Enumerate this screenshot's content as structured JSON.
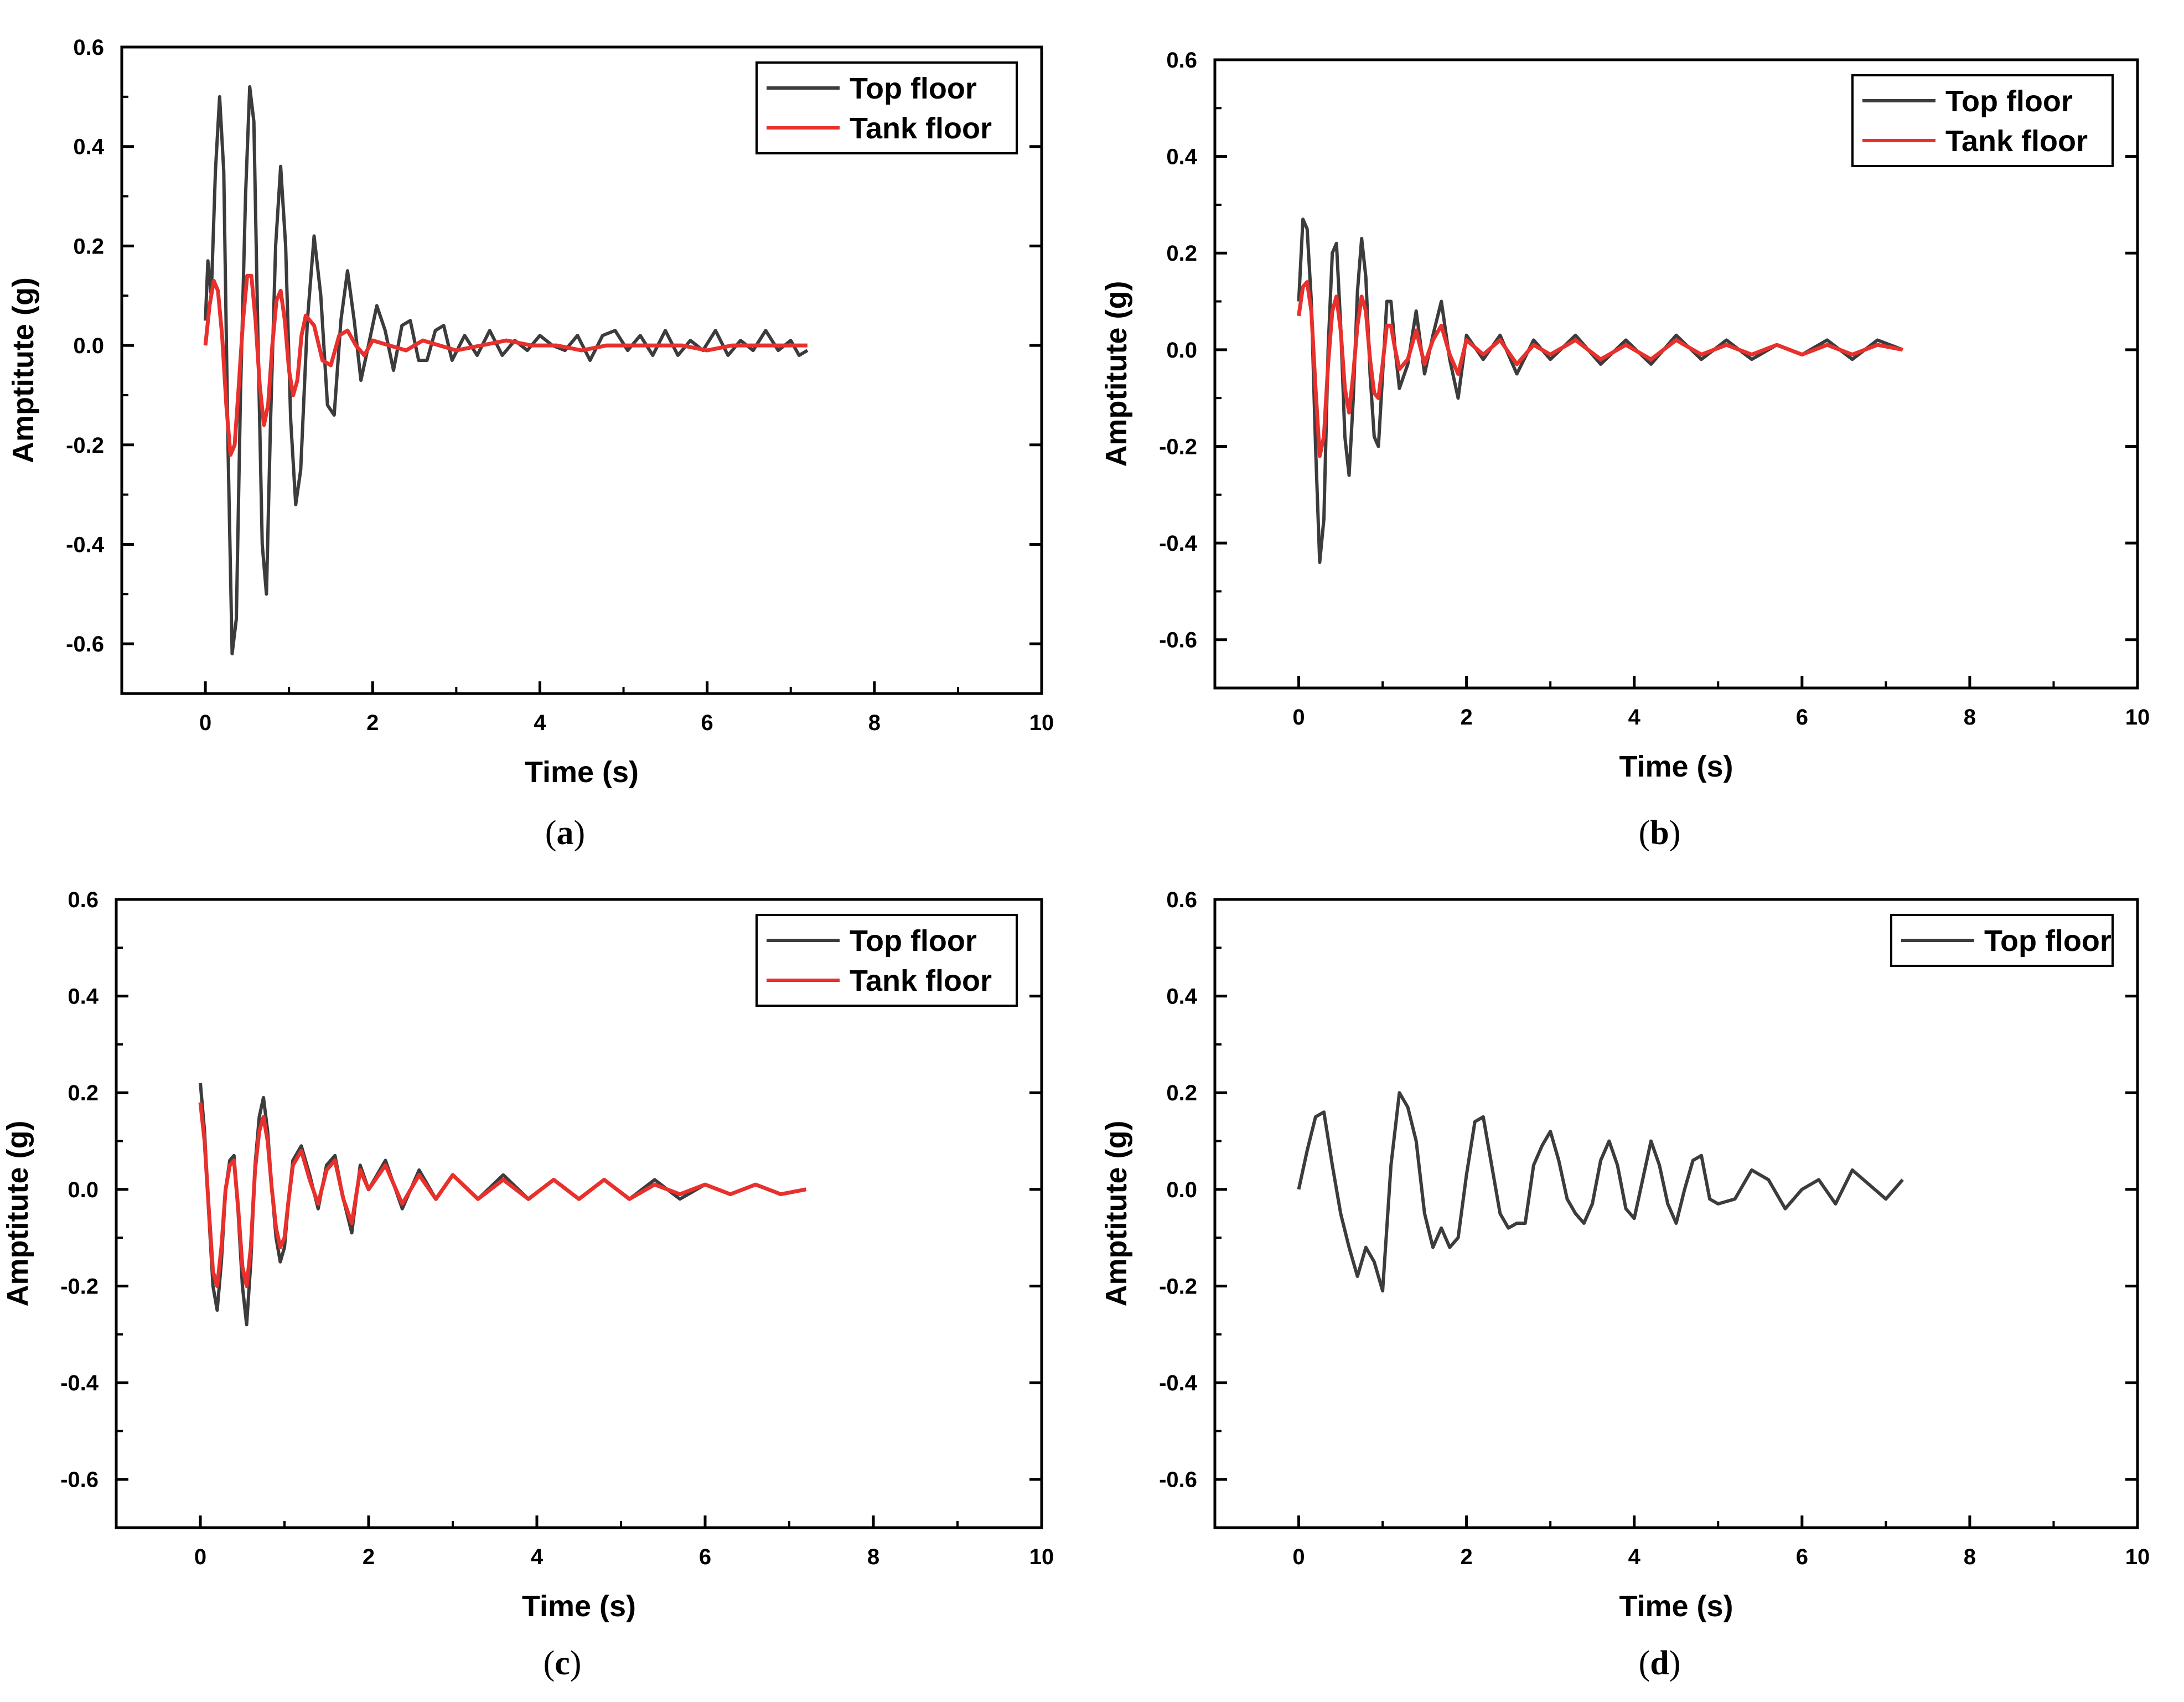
{
  "figure_title": "",
  "chart_data": [
    {
      "panel": "a",
      "panel_label": "a",
      "type": "line",
      "xlabel": "Time (s)",
      "ylabel": "Amptitute (g)",
      "xlim": [
        -1,
        10
      ],
      "ylim": [
        -0.7,
        0.6
      ],
      "xticks": [
        "0",
        "2",
        "4",
        "6",
        "8",
        "10"
      ],
      "yticks": [
        "0.6",
        "0.4",
        "0.2",
        "0.0",
        "-0.2",
        "-0.4",
        "-0.6"
      ],
      "legend_position": "top-right",
      "series": [
        {
          "name": "Top floor",
          "color": "#3c3c3c",
          "description": "decaying oscillation",
          "x": [
            0,
            0.03,
            0.07,
            0.12,
            0.17,
            0.22,
            0.27,
            0.32,
            0.37,
            0.42,
            0.48,
            0.53,
            0.58,
            0.63,
            0.68,
            0.73,
            0.78,
            0.84,
            0.9,
            0.96,
            1.02,
            1.08,
            1.14,
            1.22,
            1.3,
            1.38,
            1.46,
            1.54,
            1.62,
            1.7,
            1.78,
            1.86,
            1.95,
            2.05,
            2.15,
            2.25,
            2.35,
            2.45,
            2.55,
            2.65,
            2.75,
            2.85,
            2.95,
            3.1,
            3.25,
            3.4,
            3.55,
            3.7,
            3.85,
            4.0,
            4.15,
            4.3,
            4.45,
            4.6,
            4.75,
            4.9,
            5.05,
            5.2,
            5.35,
            5.5,
            5.65,
            5.8,
            5.95,
            6.1,
            6.25,
            6.4,
            6.55,
            6.7,
            6.85,
            7.0,
            7.1,
            7.2
          ],
          "y": [
            0.05,
            0.17,
            0.1,
            0.35,
            0.5,
            0.35,
            -0.2,
            -0.62,
            -0.55,
            -0.1,
            0.3,
            0.52,
            0.45,
            0.0,
            -0.4,
            -0.5,
            -0.15,
            0.2,
            0.36,
            0.2,
            -0.15,
            -0.32,
            -0.25,
            0.05,
            0.22,
            0.1,
            -0.12,
            -0.14,
            0.05,
            0.15,
            0.05,
            -0.07,
            0.0,
            0.08,
            0.03,
            -0.05,
            0.04,
            0.05,
            -0.03,
            -0.03,
            0.03,
            0.04,
            -0.03,
            0.02,
            -0.02,
            0.03,
            -0.02,
            0.01,
            -0.01,
            0.02,
            0.0,
            -0.01,
            0.02,
            -0.03,
            0.02,
            0.03,
            -0.01,
            0.02,
            -0.02,
            0.03,
            -0.02,
            0.01,
            -0.01,
            0.03,
            -0.02,
            0.01,
            -0.01,
            0.03,
            -0.01,
            0.01,
            -0.02,
            -0.01
          ]
        },
        {
          "name": "Tank floor",
          "color": "#e8302c",
          "description": "smaller response",
          "x": [
            0,
            0.05,
            0.1,
            0.15,
            0.2,
            0.25,
            0.3,
            0.35,
            0.4,
            0.45,
            0.5,
            0.55,
            0.6,
            0.65,
            0.7,
            0.75,
            0.8,
            0.85,
            0.9,
            0.95,
            1.0,
            1.05,
            1.1,
            1.15,
            1.2,
            1.3,
            1.4,
            1.5,
            1.6,
            1.7,
            1.8,
            1.9,
            2.0,
            2.2,
            2.4,
            2.6,
            2.8,
            3.0,
            3.3,
            3.6,
            3.9,
            4.2,
            4.5,
            4.8,
            5.1,
            5.4,
            5.7,
            6.0,
            6.3,
            6.6,
            6.9,
            7.2
          ],
          "y": [
            0.0,
            0.08,
            0.13,
            0.11,
            0.02,
            -0.12,
            -0.22,
            -0.2,
            -0.08,
            0.05,
            0.14,
            0.14,
            0.05,
            -0.08,
            -0.16,
            -0.12,
            0.0,
            0.09,
            0.11,
            0.05,
            -0.05,
            -0.1,
            -0.07,
            0.02,
            0.06,
            0.04,
            -0.03,
            -0.04,
            0.02,
            0.03,
            0.0,
            -0.02,
            0.01,
            0.0,
            -0.01,
            0.01,
            0.0,
            -0.01,
            0.0,
            0.01,
            0.0,
            0.0,
            -0.01,
            0.0,
            0.0,
            0.0,
            0.0,
            -0.01,
            0.0,
            0.0,
            0.0,
            0.0
          ]
        }
      ]
    },
    {
      "panel": "b",
      "panel_label": "b",
      "type": "line",
      "xlabel": "Time (s)",
      "ylabel": "Amptitute (g)",
      "xlim": [
        -1,
        10
      ],
      "ylim": [
        -0.7,
        0.6
      ],
      "xticks": [
        "0",
        "2",
        "4",
        "6",
        "8",
        "10"
      ],
      "yticks": [
        "0.6",
        "0.4",
        "0.2",
        "0.0",
        "-0.2",
        "-0.4",
        "-0.6"
      ],
      "legend_position": "top-right",
      "series": [
        {
          "name": "Top floor",
          "color": "#3c3c3c",
          "x": [
            0,
            0.05,
            0.1,
            0.15,
            0.2,
            0.25,
            0.3,
            0.35,
            0.4,
            0.45,
            0.5,
            0.55,
            0.6,
            0.65,
            0.7,
            0.75,
            0.8,
            0.85,
            0.9,
            0.95,
            1.0,
            1.05,
            1.1,
            1.15,
            1.2,
            1.3,
            1.4,
            1.5,
            1.6,
            1.7,
            1.8,
            1.9,
            2.0,
            2.2,
            2.4,
            2.6,
            2.8,
            3.0,
            3.3,
            3.6,
            3.9,
            4.2,
            4.5,
            4.8,
            5.1,
            5.4,
            5.7,
            6.0,
            6.3,
            6.6,
            6.9,
            7.2
          ],
          "y": [
            0.1,
            0.27,
            0.25,
            0.1,
            -0.2,
            -0.44,
            -0.35,
            0.0,
            0.2,
            0.22,
            0.05,
            -0.18,
            -0.26,
            -0.1,
            0.12,
            0.23,
            0.15,
            -0.05,
            -0.18,
            -0.2,
            -0.05,
            0.1,
            0.1,
            0.0,
            -0.08,
            -0.03,
            0.08,
            -0.05,
            0.03,
            0.1,
            -0.02,
            -0.1,
            0.03,
            -0.02,
            0.03,
            -0.05,
            0.02,
            -0.02,
            0.03,
            -0.03,
            0.02,
            -0.03,
            0.03,
            -0.02,
            0.02,
            -0.02,
            0.01,
            -0.01,
            0.02,
            -0.02,
            0.02,
            0.0
          ]
        },
        {
          "name": "Tank floor",
          "color": "#e8302c",
          "x": [
            0,
            0.05,
            0.1,
            0.15,
            0.2,
            0.25,
            0.3,
            0.35,
            0.4,
            0.45,
            0.5,
            0.55,
            0.6,
            0.65,
            0.7,
            0.75,
            0.8,
            0.85,
            0.9,
            0.95,
            1.0,
            1.05,
            1.1,
            1.15,
            1.2,
            1.3,
            1.4,
            1.5,
            1.6,
            1.7,
            1.8,
            1.9,
            2.0,
            2.2,
            2.4,
            2.6,
            2.8,
            3.0,
            3.3,
            3.6,
            3.9,
            4.2,
            4.5,
            4.8,
            5.1,
            5.4,
            5.7,
            6.0,
            6.3,
            6.6,
            6.9,
            7.2
          ],
          "y": [
            0.07,
            0.13,
            0.14,
            0.08,
            -0.08,
            -0.22,
            -0.18,
            -0.03,
            0.08,
            0.11,
            0.04,
            -0.08,
            -0.13,
            -0.05,
            0.05,
            0.11,
            0.08,
            -0.02,
            -0.09,
            -0.1,
            -0.03,
            0.05,
            0.05,
            0.0,
            -0.04,
            -0.02,
            0.04,
            -0.03,
            0.02,
            0.05,
            -0.01,
            -0.05,
            0.02,
            -0.01,
            0.02,
            -0.03,
            0.01,
            -0.01,
            0.02,
            -0.02,
            0.01,
            -0.02,
            0.02,
            -0.01,
            0.01,
            -0.01,
            0.01,
            -0.01,
            0.01,
            -0.01,
            0.01,
            0.0
          ]
        }
      ]
    },
    {
      "panel": "c",
      "panel_label": "c",
      "type": "line",
      "xlabel": "Time (s)",
      "ylabel": "Amptitute (g)",
      "xlim": [
        -1,
        10
      ],
      "ylim": [
        -0.7,
        0.6
      ],
      "xticks": [
        "0",
        "2",
        "4",
        "6",
        "8",
        "10"
      ],
      "yticks": [
        "0.6",
        "0.4",
        "0.2",
        "0.0",
        "-0.2",
        "-0.4",
        "-0.6"
      ],
      "legend_position": "top-right",
      "series": [
        {
          "name": "Top floor",
          "color": "#3c3c3c",
          "x": [
            0,
            0.05,
            0.1,
            0.15,
            0.2,
            0.25,
            0.3,
            0.35,
            0.4,
            0.45,
            0.5,
            0.55,
            0.6,
            0.65,
            0.7,
            0.75,
            0.8,
            0.85,
            0.9,
            0.95,
            1.0,
            1.05,
            1.1,
            1.2,
            1.3,
            1.4,
            1.5,
            1.6,
            1.7,
            1.8,
            1.9,
            2.0,
            2.2,
            2.4,
            2.6,
            2.8,
            3.0,
            3.3,
            3.6,
            3.9,
            4.2,
            4.5,
            4.8,
            5.1,
            5.4,
            5.7,
            6.0,
            6.3,
            6.6,
            6.9,
            7.2
          ],
          "y": [
            0.22,
            0.12,
            -0.05,
            -0.2,
            -0.25,
            -0.15,
            0.0,
            0.06,
            0.07,
            -0.05,
            -0.2,
            -0.28,
            -0.15,
            0.05,
            0.15,
            0.19,
            0.12,
            0.0,
            -0.1,
            -0.15,
            -0.12,
            -0.02,
            0.06,
            0.09,
            0.03,
            -0.04,
            0.05,
            0.07,
            -0.02,
            -0.09,
            0.05,
            0.0,
            0.06,
            -0.04,
            0.04,
            -0.02,
            0.03,
            -0.02,
            0.03,
            -0.02,
            0.02,
            -0.02,
            0.02,
            -0.02,
            0.02,
            -0.02,
            0.01,
            -0.01,
            0.01,
            -0.01,
            0.0
          ]
        },
        {
          "name": "Tank floor",
          "color": "#e8302c",
          "x": [
            0,
            0.05,
            0.1,
            0.15,
            0.2,
            0.25,
            0.3,
            0.35,
            0.4,
            0.45,
            0.5,
            0.55,
            0.6,
            0.65,
            0.7,
            0.75,
            0.8,
            0.85,
            0.9,
            0.95,
            1.0,
            1.05,
            1.1,
            1.2,
            1.3,
            1.4,
            1.5,
            1.6,
            1.7,
            1.8,
            1.9,
            2.0,
            2.2,
            2.4,
            2.6,
            2.8,
            3.0,
            3.3,
            3.6,
            3.9,
            4.2,
            4.5,
            4.8,
            5.1,
            5.4,
            5.7,
            6.0,
            6.3,
            6.6,
            6.9,
            7.2
          ],
          "y": [
            0.18,
            0.1,
            -0.04,
            -0.17,
            -0.2,
            -0.12,
            0.0,
            0.05,
            0.06,
            -0.04,
            -0.16,
            -0.2,
            -0.12,
            0.04,
            0.12,
            0.15,
            0.1,
            0.0,
            -0.08,
            -0.12,
            -0.1,
            -0.02,
            0.05,
            0.08,
            0.02,
            -0.03,
            0.04,
            0.06,
            -0.02,
            -0.07,
            0.04,
            0.0,
            0.05,
            -0.03,
            0.03,
            -0.02,
            0.03,
            -0.02,
            0.02,
            -0.02,
            0.02,
            -0.02,
            0.02,
            -0.02,
            0.01,
            -0.01,
            0.01,
            -0.01,
            0.01,
            -0.01,
            0.0
          ]
        }
      ]
    },
    {
      "panel": "d",
      "panel_label": "d",
      "type": "line",
      "xlabel": "Time (s)",
      "ylabel": "Amptitute (g)",
      "xlim": [
        -1,
        10
      ],
      "ylim": [
        -0.7,
        0.6
      ],
      "xticks": [
        "0",
        "2",
        "4",
        "6",
        "8",
        "10"
      ],
      "yticks": [
        "0.6",
        "0.4",
        "0.2",
        "0.0",
        "-0.2",
        "-0.4",
        "-0.6"
      ],
      "legend_position": "top-right",
      "series": [
        {
          "name": "Top floor",
          "color": "#3c3c3c",
          "x": [
            0,
            0.1,
            0.2,
            0.3,
            0.4,
            0.5,
            0.6,
            0.7,
            0.8,
            0.9,
            1.0,
            1.1,
            1.2,
            1.3,
            1.4,
            1.5,
            1.6,
            1.7,
            1.8,
            1.9,
            2.0,
            2.1,
            2.2,
            2.3,
            2.4,
            2.5,
            2.6,
            2.7,
            2.8,
            2.9,
            3.0,
            3.1,
            3.2,
            3.3,
            3.4,
            3.5,
            3.6,
            3.7,
            3.8,
            3.9,
            4.0,
            4.1,
            4.2,
            4.3,
            4.4,
            4.5,
            4.6,
            4.7,
            4.8,
            4.9,
            5.0,
            5.2,
            5.4,
            5.6,
            5.8,
            6.0,
            6.2,
            6.4,
            6.6,
            6.8,
            7.0,
            7.2
          ],
          "y": [
            0.0,
            0.08,
            0.15,
            0.16,
            0.05,
            -0.05,
            -0.12,
            -0.18,
            -0.12,
            -0.15,
            -0.21,
            0.05,
            0.2,
            0.17,
            0.1,
            -0.05,
            -0.12,
            -0.08,
            -0.12,
            -0.1,
            0.03,
            0.14,
            0.15,
            0.05,
            -0.05,
            -0.08,
            -0.07,
            -0.07,
            0.05,
            0.09,
            0.12,
            0.06,
            -0.02,
            -0.05,
            -0.07,
            -0.03,
            0.06,
            0.1,
            0.05,
            -0.04,
            -0.06,
            0.02,
            0.1,
            0.05,
            -0.03,
            -0.07,
            0.0,
            0.06,
            0.07,
            -0.02,
            -0.03,
            -0.02,
            0.04,
            0.02,
            -0.04,
            0.0,
            0.02,
            -0.03,
            0.04,
            0.01,
            -0.02,
            0.02
          ]
        }
      ]
    }
  ]
}
